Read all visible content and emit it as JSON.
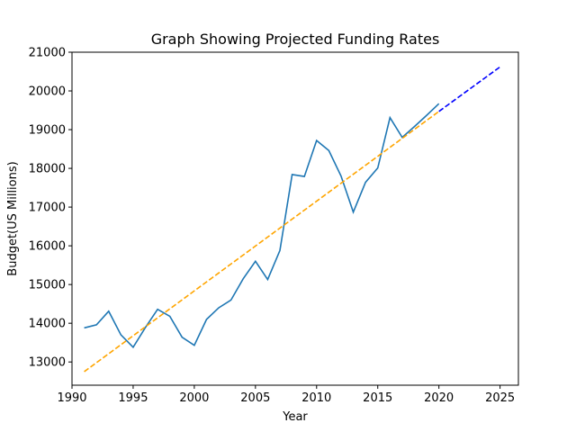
{
  "chart_data": {
    "type": "line",
    "title": "Graph Showing Projected Funding Rates",
    "xlabel": "Year",
    "ylabel": "Budget(US Millions)",
    "xlim": [
      1990,
      2026.5
    ],
    "ylim": [
      12400,
      21000
    ],
    "xticks": [
      1990,
      1995,
      2000,
      2005,
      2010,
      2015,
      2020,
      2025
    ],
    "yticks": [
      13000,
      14000,
      15000,
      16000,
      17000,
      18000,
      19000,
      20000,
      21000
    ],
    "grid": false,
    "series": [
      {
        "style": "solid",
        "color": "#1f77b4",
        "x": [
          1991,
          1992,
          1993,
          1994,
          1995,
          1996,
          1997,
          1998,
          1999,
          2000,
          2001,
          2002,
          2003,
          2004,
          2005,
          2006,
          2007,
          2008,
          2009,
          2010,
          2011,
          2012,
          2013,
          2014,
          2015,
          2016,
          2017,
          2018,
          2019,
          2020
        ],
        "y": [
          13880,
          13960,
          14310,
          13700,
          13380,
          13890,
          14360,
          14180,
          13640,
          13430,
          14100,
          14400,
          14600,
          15150,
          15600,
          15130,
          15880,
          17840,
          17790,
          18720,
          18460,
          17800,
          16870,
          17640,
          18010,
          19310,
          18800,
          19080,
          19370,
          19670
        ]
      },
      {
        "style": "dashed",
        "color": "#ffa500",
        "x": [
          1991,
          2020
        ],
        "y": [
          12750,
          19470
        ]
      },
      {
        "style": "dashed",
        "color": "#0000ff",
        "x": [
          2020,
          2025
        ],
        "y": [
          19470,
          20620
        ]
      }
    ]
  }
}
